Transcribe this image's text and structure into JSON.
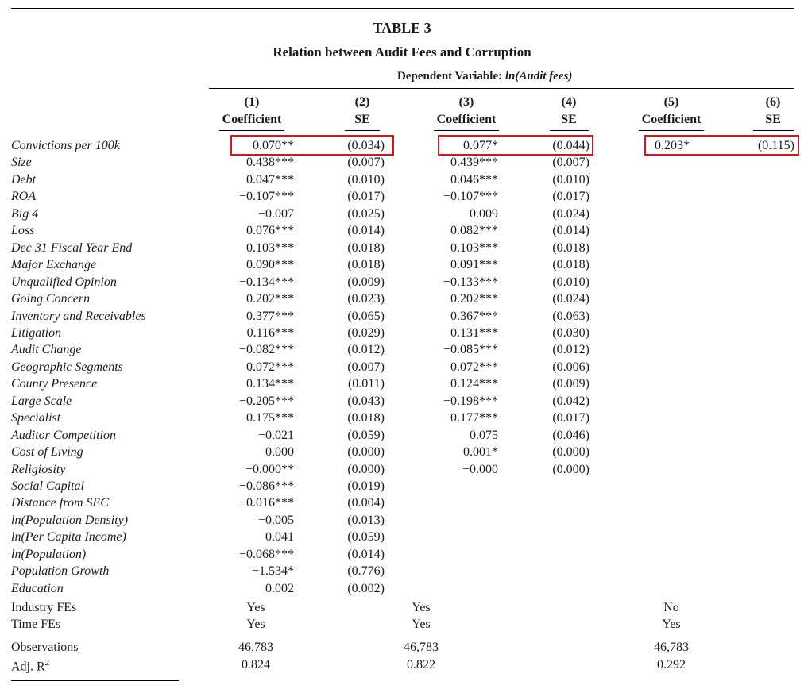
{
  "table": {
    "title": "TABLE 3",
    "subtitle": "Relation between Audit Fees and Corruption",
    "dep_var_prefix": "Dependent Variable: ",
    "dep_var_name": "ln(Audit fees)",
    "columns": [
      {
        "num": "(1)",
        "label": "Coefficient"
      },
      {
        "num": "(2)",
        "label": "SE"
      },
      {
        "num": "(3)",
        "label": "Coefficient"
      },
      {
        "num": "(4)",
        "label": "SE"
      },
      {
        "num": "(5)",
        "label": "Coefficient"
      },
      {
        "num": "(6)",
        "label": "SE"
      }
    ],
    "rows": [
      {
        "label": "Convictions per 100k",
        "c1": "0.070**",
        "c2": "(0.034)",
        "c3": "0.077*",
        "c4": "(0.044)",
        "c5": "0.203*",
        "c6": "(0.115)",
        "highlight": true
      },
      {
        "label": "Size",
        "c1": "0.438***",
        "c2": "(0.007)",
        "c3": "0.439***",
        "c4": "(0.007)"
      },
      {
        "label": "Debt",
        "c1": "0.047***",
        "c2": "(0.010)",
        "c3": "0.046***",
        "c4": "(0.010)"
      },
      {
        "label": "ROA",
        "c1": "−0.107***",
        "c2": "(0.017)",
        "c3": "−0.107***",
        "c4": "(0.017)"
      },
      {
        "label": "Big 4",
        "c1": "−0.007",
        "c2": "(0.025)",
        "c3": "0.009",
        "c4": "(0.024)"
      },
      {
        "label": "Loss",
        "c1": "0.076***",
        "c2": "(0.014)",
        "c3": "0.082***",
        "c4": "(0.014)"
      },
      {
        "label": "Dec 31 Fiscal Year End",
        "c1": "0.103***",
        "c2": "(0.018)",
        "c3": "0.103***",
        "c4": "(0.018)"
      },
      {
        "label": "Major Exchange",
        "c1": "0.090***",
        "c2": "(0.018)",
        "c3": "0.091***",
        "c4": "(0.018)"
      },
      {
        "label": "Unqualified Opinion",
        "c1": "−0.134***",
        "c2": "(0.009)",
        "c3": "−0.133***",
        "c4": "(0.010)"
      },
      {
        "label": "Going Concern",
        "c1": "0.202***",
        "c2": "(0.023)",
        "c3": "0.202***",
        "c4": "(0.024)"
      },
      {
        "label": "Inventory and Receivables",
        "c1": "0.377***",
        "c2": "(0.065)",
        "c3": "0.367***",
        "c4": "(0.063)"
      },
      {
        "label": "Litigation",
        "c1": "0.116***",
        "c2": "(0.029)",
        "c3": "0.131***",
        "c4": "(0.030)"
      },
      {
        "label": "Audit Change",
        "c1": "−0.082***",
        "c2": "(0.012)",
        "c3": "−0.085***",
        "c4": "(0.012)"
      },
      {
        "label": "Geographic Segments",
        "c1": "0.072***",
        "c2": "(0.007)",
        "c3": "0.072***",
        "c4": "(0.006)"
      },
      {
        "label": "County Presence",
        "c1": "0.134***",
        "c2": "(0.011)",
        "c3": "0.124***",
        "c4": "(0.009)"
      },
      {
        "label": "Large Scale",
        "c1": "−0.205***",
        "c2": "(0.043)",
        "c3": "−0.198***",
        "c4": "(0.042)"
      },
      {
        "label": "Specialist",
        "c1": "0.175***",
        "c2": "(0.018)",
        "c3": "0.177***",
        "c4": "(0.017)"
      },
      {
        "label": "Auditor Competition",
        "c1": "−0.021",
        "c2": "(0.059)",
        "c3": "0.075",
        "c4": "(0.046)"
      },
      {
        "label": "Cost of Living",
        "c1": "0.000",
        "c2": "(0.000)",
        "c3": "0.001*",
        "c4": "(0.000)"
      },
      {
        "label": "Religiosity",
        "c1": "−0.000**",
        "c2": "(0.000)",
        "c3": "−0.000",
        "c4": "(0.000)"
      },
      {
        "label": "Social Capital",
        "c1": "−0.086***",
        "c2": "(0.019)"
      },
      {
        "label": "Distance from SEC",
        "c1": "−0.016***",
        "c2": "(0.004)"
      },
      {
        "label": "ln(Population Density)",
        "c1": "−0.005",
        "c2": "(0.013)"
      },
      {
        "label": "ln(Per Capita Income)",
        "c1": "0.041",
        "c2": "(0.059)"
      },
      {
        "label": "ln(Population)",
        "c1": "−0.068***",
        "c2": "(0.014)"
      },
      {
        "label": "Population Growth",
        "c1": "−1.534*",
        "c2": "(0.776)"
      },
      {
        "label": "Education",
        "c1": "0.002",
        "c2": "(0.002)"
      }
    ],
    "fe_rows": [
      {
        "label": "Industry FEs",
        "m1": "Yes",
        "m2": "Yes",
        "m3": "No"
      },
      {
        "label": "Time FEs",
        "m1": "Yes",
        "m2": "Yes",
        "m3": "Yes"
      }
    ],
    "observations": {
      "label": "Observations",
      "m1": "46,783",
      "m2": "46,783",
      "m3": "46,783"
    },
    "adj_r2": {
      "label_main": "Adj. R",
      "label_sup": "2",
      "m1": "0.824",
      "m2": "0.822",
      "m3": "0.292"
    }
  }
}
